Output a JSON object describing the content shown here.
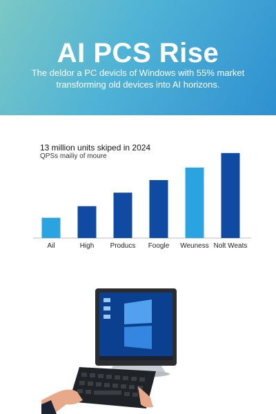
{
  "banner": {
    "title": "AI PCS Rise",
    "text": "The deldor a PC devicls of Windows with 55% market transforming old devices into AI horizons."
  },
  "colors": {
    "banner_start": "#7cc8c4",
    "banner_end": "#2f90d0",
    "bar_light": "#2ba3e0",
    "bar_dark": "#0f4aa3"
  },
  "chart_data": {
    "type": "bar",
    "title": "13 million units skiped in 2024",
    "subtitle": "QPSs mailiy of moure",
    "categories": [
      "Ail",
      "High",
      "Producs",
      "Foogle",
      "Weuness",
      "Nolt Weats"
    ],
    "values": [
      21,
      33,
      47,
      60,
      73,
      88
    ],
    "bar_colors": [
      "#2ba3e0",
      "#0f4aa3",
      "#0f4aa3",
      "#0f4aa3",
      "#2ba3e0",
      "#0f4aa3"
    ],
    "ylim": [
      0,
      100
    ],
    "grid": false
  },
  "illustration": {
    "device": "monitor-icon",
    "input": "keyboard-icon"
  }
}
